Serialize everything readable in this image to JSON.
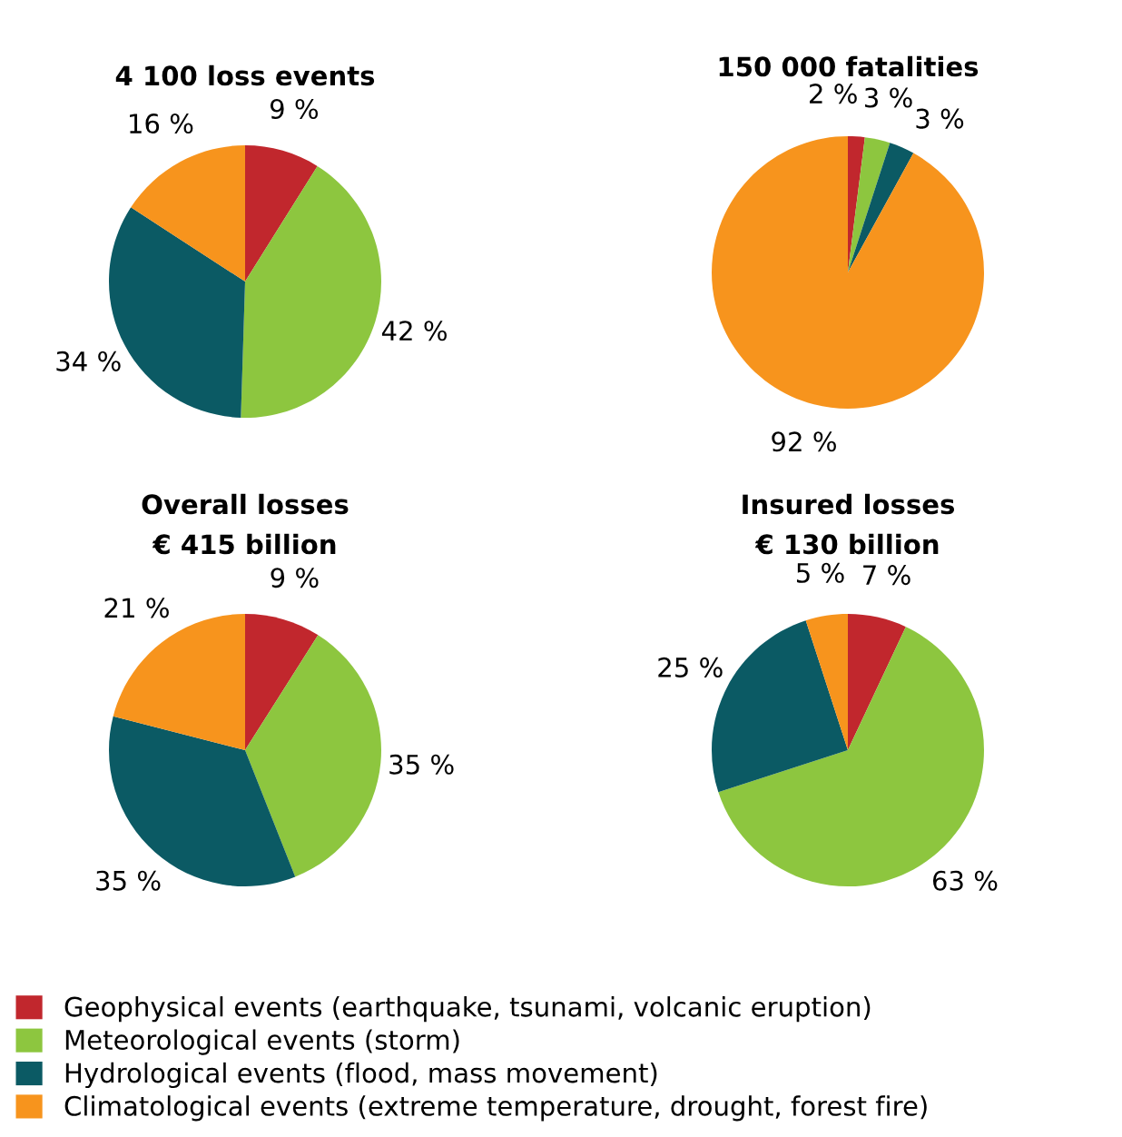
{
  "chart_data": [
    {
      "type": "pie",
      "title": "4 100 loss events",
      "legend": "bottom",
      "categories": [
        "Geophysical events (earthquake, tsunami, volcanic eruption)",
        "Meteorological events (storm)",
        "Hydrological events (flood, mass movement)",
        "Climatological events (extreme temperature, drought, forest fire)"
      ],
      "values": [
        9,
        42,
        34,
        16
      ],
      "colors": [
        "#c1272d",
        "#8dc63f",
        "#0b5a64",
        "#f7941d"
      ],
      "value_labels": [
        "9 %",
        "42 %",
        "34 %",
        "16 %"
      ]
    },
    {
      "type": "pie",
      "title": "150 000 fatalities",
      "categories": [
        null,
        null,
        null,
        null
      ],
      "values": [
        2,
        3,
        3,
        92
      ],
      "colors": [
        "#c1272d",
        "#8dc63f",
        "#0b5a64",
        "#f7941d"
      ],
      "value_labels": [
        "2 %",
        "3 %",
        "3 %",
        "92 %"
      ]
    },
    {
      "type": "pie",
      "title": "Overall losses",
      "subtitle": "€ 415 billion",
      "categories": [
        null,
        null,
        null,
        null
      ],
      "values": [
        9,
        35,
        35,
        21
      ],
      "colors": [
        "#c1272d",
        "#8dc63f",
        "#0b5a64",
        "#f7941d"
      ],
      "value_labels": [
        "9 %",
        "35 %",
        "35 %",
        "21 %"
      ]
    },
    {
      "type": "pie",
      "title": "Insured losses",
      "subtitle": "€ 130 billion",
      "categories": [
        null,
        null,
        null,
        null
      ],
      "values": [
        7,
        63,
        25,
        5
      ],
      "colors": [
        "#c1272d",
        "#8dc63f",
        "#0b5a64",
        "#f7941d"
      ],
      "value_labels": [
        "7 %",
        "63 %",
        "25 %",
        "5 %"
      ]
    }
  ]
}
